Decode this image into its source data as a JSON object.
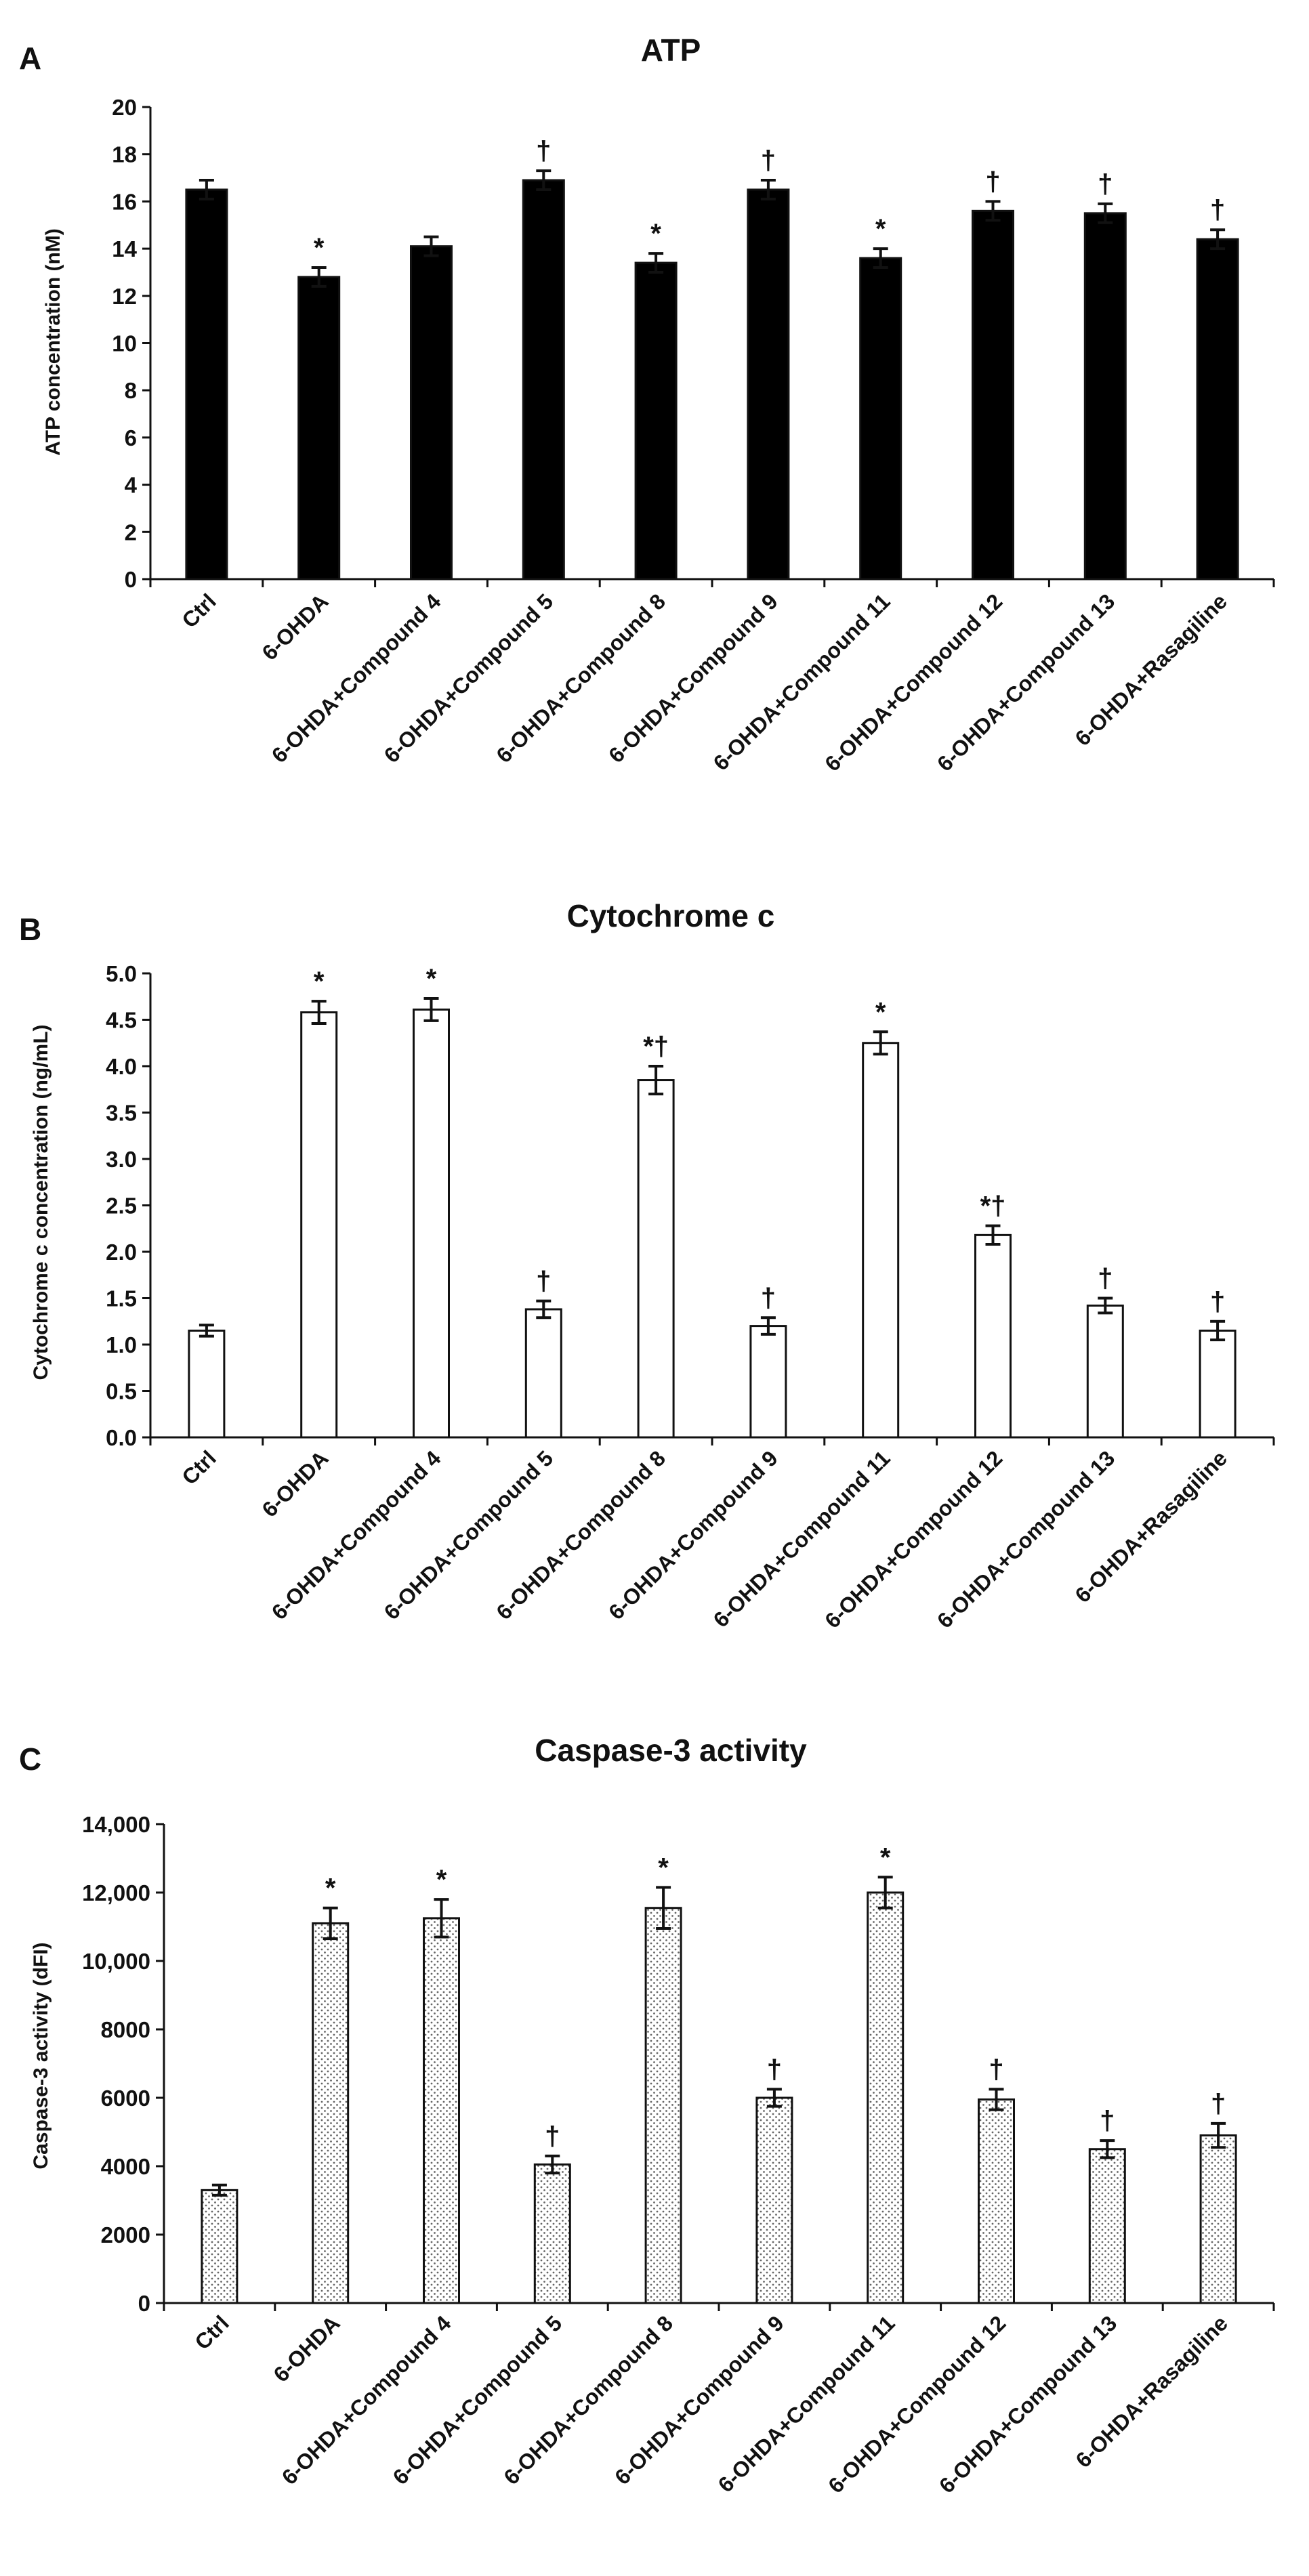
{
  "chart_data": [
    {
      "type": "bar",
      "panel": "A",
      "title": "ATP",
      "ylabel": "ATP concentration (nM)",
      "xlabel": "",
      "ylim": [
        0,
        20
      ],
      "yticks": [
        0,
        2,
        4,
        6,
        8,
        10,
        12,
        14,
        16,
        18,
        20
      ],
      "ytick_labels": [
        "0",
        "2",
        "4",
        "6",
        "8",
        "10",
        "12",
        "14",
        "16",
        "18",
        "20"
      ],
      "bar_style": "solid",
      "bar_color": "#000000",
      "categories": [
        "Ctrl",
        "6-OHDA",
        "6-OHDA+Compound 4",
        "6-OHDA+Compound 5",
        "6-OHDA+Compound 8",
        "6-OHDA+Compound 9",
        "6-OHDA+Compound 11",
        "6-OHDA+Compound 12",
        "6-OHDA+Compound 13",
        "6-OHDA+Rasagiline"
      ],
      "values": [
        16.5,
        12.8,
        14.1,
        16.9,
        13.4,
        16.5,
        13.6,
        15.6,
        15.5,
        14.4
      ],
      "errors": [
        0.4,
        0.4,
        0.4,
        0.4,
        0.4,
        0.4,
        0.4,
        0.4,
        0.4,
        0.4
      ],
      "annotations": [
        "",
        "*",
        "",
        "†",
        "*",
        "†",
        "*",
        "†",
        "†",
        "†"
      ]
    },
    {
      "type": "bar",
      "panel": "B",
      "title": "Cytochrome c",
      "ylabel": "Cytochrome c concentration (ng/mL)",
      "xlabel": "",
      "ylim": [
        0,
        5
      ],
      "yticks": [
        0,
        0.5,
        1,
        1.5,
        2,
        2.5,
        3,
        3.5,
        4,
        4.5,
        5
      ],
      "ytick_labels": [
        "0.0",
        "0.5",
        "1.0",
        "1.5",
        "2.0",
        "2.5",
        "3.0",
        "3.5",
        "4.0",
        "4.5",
        "5.0"
      ],
      "bar_style": "hollow",
      "bar_color": "#ffffff",
      "categories": [
        "Ctrl",
        "6-OHDA",
        "6-OHDA+Compound 4",
        "6-OHDA+Compound 5",
        "6-OHDA+Compound 8",
        "6-OHDA+Compound 9",
        "6-OHDA+Compound 11",
        "6-OHDA+Compound 12",
        "6-OHDA+Compound 13",
        "6-OHDA+Rasagiline"
      ],
      "values": [
        1.15,
        4.58,
        4.61,
        1.38,
        3.85,
        1.2,
        4.25,
        2.18,
        1.42,
        1.15
      ],
      "errors": [
        0.06,
        0.12,
        0.12,
        0.09,
        0.15,
        0.09,
        0.12,
        0.1,
        0.08,
        0.1
      ],
      "annotations": [
        "",
        "*",
        "*",
        "†",
        "*†",
        "†",
        "*",
        "*†",
        "†",
        "†"
      ]
    },
    {
      "type": "bar",
      "panel": "C",
      "title": "Caspase-3 activity",
      "ylabel": "Caspase-3 activity (dFI)",
      "xlabel": "",
      "ylim": [
        0,
        14000
      ],
      "yticks": [
        0,
        2000,
        4000,
        6000,
        8000,
        10000,
        12000,
        14000
      ],
      "ytick_labels": [
        "0",
        "2000",
        "4000",
        "6000",
        "8000",
        "10,000",
        "12,000",
        "14,000"
      ],
      "bar_style": "dotted",
      "bar_color": "#ffffff",
      "categories": [
        "Ctrl",
        "6-OHDA",
        "6-OHDA+Compound 4",
        "6-OHDA+Compound 5",
        "6-OHDA+Compound 8",
        "6-OHDA+Compound 9",
        "6-OHDA+Compound 11",
        "6-OHDA+Compound 12",
        "6-OHDA+Compound 13",
        "6-OHDA+Rasagiline"
      ],
      "values": [
        3300,
        11100,
        11250,
        4050,
        11550,
        6000,
        12000,
        5950,
        4500,
        4900
      ],
      "errors": [
        150,
        450,
        550,
        250,
        600,
        250,
        450,
        300,
        250,
        350
      ],
      "annotations": [
        "",
        "*",
        "*",
        "†",
        "*",
        "†",
        "*",
        "†",
        "†",
        "†"
      ]
    }
  ]
}
